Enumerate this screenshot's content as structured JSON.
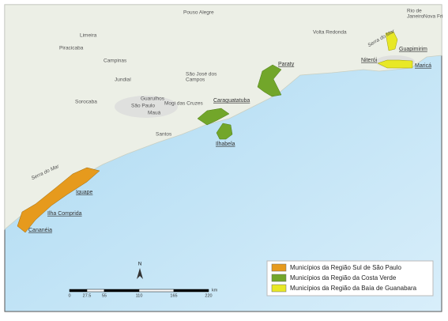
{
  "places": [
    "Pouso Alegre",
    "Rio de",
    "Janeiro",
    "Nova Fri",
    "Limeira",
    "Volta Redonda",
    "Piracicaba",
    "Serra do Mar",
    "Campinas",
    "Guapimirim",
    "Niterói",
    "Maricá",
    "Paraty",
    "Jundiaí",
    "São José dos",
    "Campos",
    "Sorocaba",
    "Guarulhos",
    "Caraguatatuba",
    "São Paulo",
    "Mogi das Cruzes",
    "Mauá",
    "Ilhabela",
    "Santos",
    "Serra do Mar",
    "Iguape",
    "Ilha Comprida",
    "Cananéia"
  ],
  "legend": [
    "Municípios da Região Sul de São Paulo",
    "Municípios da Região da Costa Verde",
    "Municípios da Região da Baía de Guanabara"
  ],
  "north": "N",
  "scale": {
    "ticks": [
      0,
      27.5,
      55,
      110,
      165,
      220
    ],
    "unit": "km"
  }
}
